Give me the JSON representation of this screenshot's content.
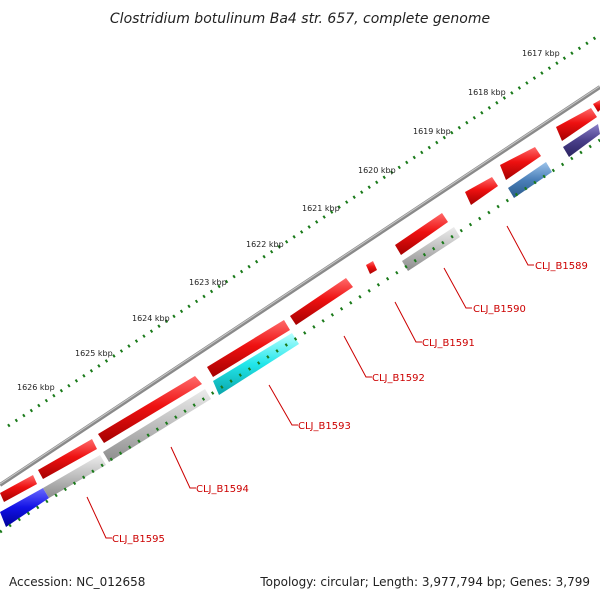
{
  "title": "Clostridium botulinum Ba4 str. 657, complete genome",
  "accession_text": "Accession: NC_012658",
  "topology_text": "Topology: circular; Length: 3,977,794 bp; Genes: 3,799",
  "kbp_ticks": [
    "1617 kbp",
    "1618 kbp",
    "1619 kbp",
    "1620 kbp",
    "1621 kbp",
    "1622 kbp",
    "1623 kbp",
    "1624 kbp",
    "1625 kbp",
    "1626 kbp"
  ],
  "gene_labels": [
    "CLJ_B1589",
    "CLJ_B1590",
    "CLJ_B1591",
    "CLJ_B1592",
    "CLJ_B1593",
    "CLJ_B1594",
    "CLJ_B1595"
  ],
  "colors": {
    "backbone": "#8a8a8a",
    "cds": "#ee1111",
    "cds_gray": "#b8b8b8",
    "cyan": "#22e6ea",
    "blue": "#1212e6",
    "steel": "#4a7fb8",
    "purple": "#4a3f8a",
    "tick": "#1a7a1a",
    "label": "#cc0000"
  }
}
